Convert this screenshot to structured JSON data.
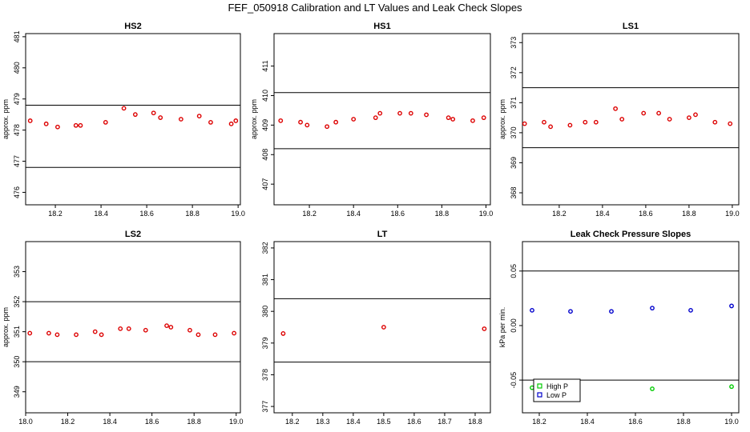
{
  "figure": {
    "title": "FEF_050918  Calibration and LT Values and Leak Check Slopes"
  },
  "chart_data": [
    {
      "type": "scatter",
      "title": "HS2",
      "ylabel": "approx. ppm",
      "xlabel": "",
      "xlim": [
        18.07,
        19.01
      ],
      "ylim": [
        475.6,
        481.1
      ],
      "xticks": [
        "18.2",
        "18.4",
        "18.6",
        "18.8",
        "19.0"
      ],
      "xtick_values": [
        18.2,
        18.4,
        18.6,
        18.8,
        19.0
      ],
      "yticks": [
        "476",
        "477",
        "478",
        "479",
        "480",
        "481"
      ],
      "ytick_values": [
        476,
        477,
        478,
        479,
        480,
        481
      ],
      "hlines": [
        478.8,
        476.8
      ],
      "series": [
        {
          "color": "#dd0000",
          "marker": "circle",
          "x": [
            18.09,
            18.16,
            18.21,
            18.29,
            18.31,
            18.42,
            18.5,
            18.55,
            18.63,
            18.66,
            18.75,
            18.83,
            18.88,
            18.97,
            18.99
          ],
          "y": [
            478.3,
            478.2,
            478.1,
            478.15,
            478.15,
            478.25,
            478.7,
            478.5,
            478.55,
            478.4,
            478.35,
            478.45,
            478.25,
            478.2,
            478.3
          ]
        }
      ]
    },
    {
      "type": "scatter",
      "title": "HS1",
      "ylabel": "approx. ppm",
      "xlabel": "",
      "xlim": [
        18.04,
        19.02
      ],
      "ylim": [
        406.3,
        412.1
      ],
      "xticks": [
        "18.2",
        "18.4",
        "18.6",
        "18.8",
        "19.0"
      ],
      "xtick_values": [
        18.2,
        18.4,
        18.6,
        18.8,
        19.0
      ],
      "yticks": [
        "407",
        "408",
        "409",
        "410",
        "411"
      ],
      "ytick_values": [
        407,
        408,
        409,
        410,
        411
      ],
      "hlines": [
        410.1,
        408.2
      ],
      "series": [
        {
          "color": "#dd0000",
          "marker": "circle",
          "x": [
            18.07,
            18.16,
            18.19,
            18.28,
            18.32,
            18.4,
            18.5,
            18.52,
            18.61,
            18.66,
            18.73,
            18.83,
            18.85,
            18.94,
            18.99
          ],
          "y": [
            409.15,
            409.1,
            409.0,
            408.95,
            409.1,
            409.2,
            409.25,
            409.4,
            409.4,
            409.4,
            409.35,
            409.25,
            409.2,
            409.15,
            409.25
          ]
        }
      ]
    },
    {
      "type": "scatter",
      "title": "LS1",
      "ylabel": "approx. ppm",
      "xlabel": "",
      "xlim": [
        18.03,
        19.03
      ],
      "ylim": [
        367.6,
        373.3
      ],
      "xticks": [
        "18.2",
        "18.4",
        "18.6",
        "18.8",
        "19.0"
      ],
      "xtick_values": [
        18.2,
        18.4,
        18.6,
        18.8,
        19.0
      ],
      "yticks": [
        "368",
        "369",
        "370",
        "371",
        "372",
        "373"
      ],
      "ytick_values": [
        368,
        369,
        370,
        371,
        372,
        373
      ],
      "hlines": [
        371.5,
        369.5
      ],
      "series": [
        {
          "color": "#dd0000",
          "marker": "circle",
          "x": [
            18.04,
            18.13,
            18.16,
            18.25,
            18.32,
            18.37,
            18.46,
            18.49,
            18.59,
            18.66,
            18.71,
            18.8,
            18.83,
            18.92,
            18.99
          ],
          "y": [
            370.3,
            370.35,
            370.2,
            370.25,
            370.35,
            370.35,
            370.8,
            370.45,
            370.65,
            370.65,
            370.45,
            370.5,
            370.6,
            370.35,
            370.3
          ]
        }
      ]
    },
    {
      "type": "scatter",
      "title": "LS2",
      "ylabel": "approx. ppm",
      "xlabel": "",
      "xlim": [
        18.0,
        19.02
      ],
      "ylim": [
        348.3,
        354.0
      ],
      "xticks": [
        "18.0",
        "18.2",
        "18.4",
        "18.6",
        "18.8",
        "19.0"
      ],
      "xtick_values": [
        18.0,
        18.2,
        18.4,
        18.6,
        18.8,
        19.0
      ],
      "yticks": [
        "349",
        "350",
        "351",
        "352",
        "353"
      ],
      "ytick_values": [
        349,
        350,
        351,
        352,
        353
      ],
      "hlines": [
        352.0,
        350.0
      ],
      "series": [
        {
          "color": "#dd0000",
          "marker": "circle",
          "x": [
            18.02,
            18.11,
            18.15,
            18.24,
            18.33,
            18.36,
            18.45,
            18.49,
            18.57,
            18.67,
            18.69,
            18.78,
            18.82,
            18.9,
            18.99
          ],
          "y": [
            350.95,
            350.95,
            350.9,
            350.9,
            351.0,
            350.9,
            351.1,
            351.1,
            351.05,
            351.2,
            351.15,
            351.05,
            350.9,
            350.9,
            350.95
          ]
        }
      ]
    },
    {
      "type": "scatter",
      "title": "LT",
      "ylabel": "",
      "xlabel": "",
      "xlim": [
        18.14,
        18.85
      ],
      "ylim": [
        376.8,
        382.2
      ],
      "xticks": [
        "18.2",
        "18.3",
        "18.4",
        "18.5",
        "18.6",
        "18.7",
        "18.8"
      ],
      "xtick_values": [
        18.2,
        18.3,
        18.4,
        18.5,
        18.6,
        18.7,
        18.8
      ],
      "yticks": [
        "377",
        "378",
        "379",
        "380",
        "381",
        "382"
      ],
      "ytick_values": [
        377,
        378,
        379,
        380,
        381,
        382
      ],
      "hlines": [
        380.4,
        378.4
      ],
      "series": [
        {
          "color": "#dd0000",
          "marker": "circle",
          "x": [
            18.17,
            18.5,
            18.83
          ],
          "y": [
            379.3,
            379.5,
            379.45
          ]
        }
      ]
    },
    {
      "type": "scatter",
      "title": "Leak Check Pressure Slopes",
      "ylabel": "kPa per min.",
      "xlabel": "",
      "xlim": [
        18.13,
        19.03
      ],
      "ylim": [
        -0.08,
        0.077
      ],
      "xticks": [
        "18.2",
        "18.4",
        "18.6",
        "18.8",
        "19.0"
      ],
      "xtick_values": [
        18.2,
        18.4,
        18.6,
        18.8,
        19.0
      ],
      "yticks": [
        "-0.05",
        "0.00",
        "0.05"
      ],
      "ytick_values": [
        -0.05,
        0.0,
        0.05
      ],
      "hlines": [
        0.05,
        -0.05
      ],
      "legend": {
        "position": "bottom-left",
        "entries": [
          "High P",
          "Low P"
        ]
      },
      "series": [
        {
          "name": "High P",
          "color": "#00cc00",
          "marker": "circle",
          "x": [
            18.17,
            18.33,
            18.67,
            19.0
          ],
          "y": [
            -0.057,
            -0.058,
            -0.058,
            -0.056
          ]
        },
        {
          "name": "Low P",
          "color": "#0000cc",
          "marker": "circle",
          "x": [
            18.17,
            18.33,
            18.5,
            18.67,
            18.83,
            19.0
          ],
          "y": [
            0.014,
            0.013,
            0.013,
            0.016,
            0.014,
            0.018
          ]
        }
      ]
    }
  ]
}
